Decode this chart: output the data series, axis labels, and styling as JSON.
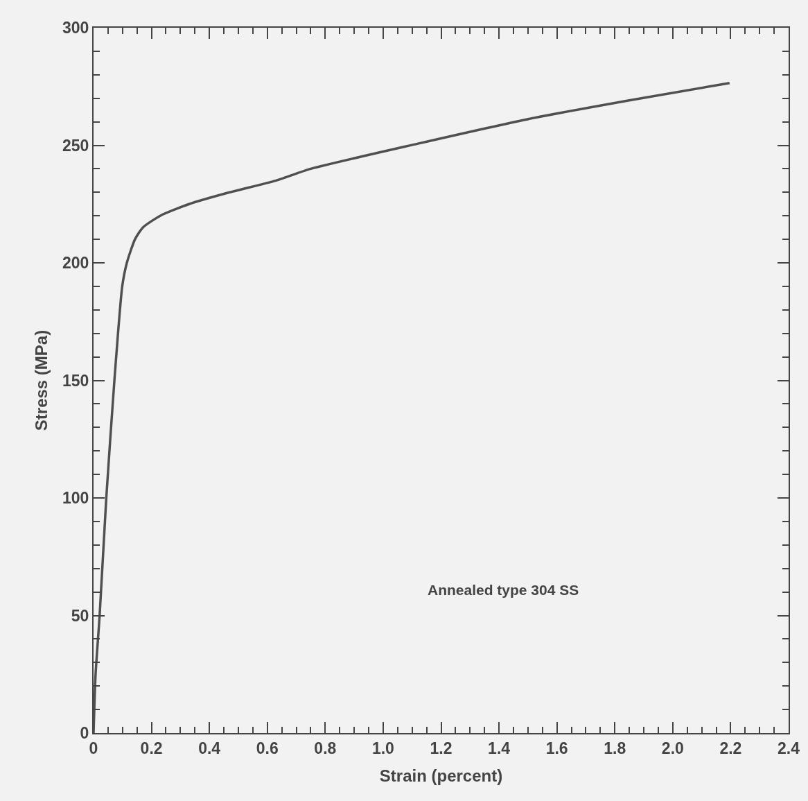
{
  "chart_data": {
    "type": "line",
    "xlabel": "Strain (percent)",
    "ylabel": "Stress (MPa)",
    "annotations": [
      "Annealed type 304 SS"
    ],
    "series": [
      {
        "color": "#505050",
        "x": [
          0,
          0.007,
          0.021,
          0.044,
          0.072,
          0.099,
          0.115,
          0.143,
          0.17,
          0.23,
          0.33,
          0.47,
          0.63,
          0.75,
          1.12,
          1.495,
          1.846,
          2.196
        ],
        "values": [
          0,
          25,
          50,
          100,
          150,
          190,
          200,
          210,
          215,
          220,
          225,
          230,
          235,
          240,
          250.7,
          261,
          269,
          276.5
        ]
      }
    ],
    "xlim": [
      0,
      2.4
    ],
    "ylim": [
      0,
      300
    ],
    "xticks": [
      0,
      0.2,
      0.4,
      0.6,
      0.8,
      {
        "value": 1.0,
        "label": "1.0"
      },
      1.2,
      1.4,
      1.6,
      1.8,
      {
        "value": 2.0,
        "label": "2.0"
      },
      2.2,
      2.4,
      {
        "value": 0.05,
        "label": null
      },
      {
        "value": 0.1,
        "label": null
      },
      {
        "value": 0.15,
        "label": null
      },
      {
        "value": 0.25,
        "label": null
      },
      {
        "value": 0.3,
        "label": null
      },
      {
        "value": 0.35,
        "label": null
      },
      {
        "value": 0.45,
        "label": null
      },
      {
        "value": 0.5,
        "label": null
      },
      {
        "value": 0.55,
        "label": null
      },
      {
        "value": 0.65,
        "label": null
      },
      {
        "value": 0.7,
        "label": null
      },
      {
        "value": 0.75,
        "label": null
      },
      {
        "value": 0.85,
        "label": null
      },
      {
        "value": 0.9,
        "label": null
      },
      {
        "value": 0.95,
        "label": null
      },
      {
        "value": 1.05,
        "label": null
      },
      {
        "value": 1.1,
        "label": null
      },
      {
        "value": 1.15,
        "label": null
      },
      {
        "value": 1.25,
        "label": null
      },
      {
        "value": 1.3,
        "label": null
      },
      {
        "value": 1.35,
        "label": null
      },
      {
        "value": 1.45,
        "label": null
      },
      {
        "value": 1.5,
        "label": null
      },
      {
        "value": 1.55,
        "label": null
      },
      {
        "value": 1.65,
        "label": null
      },
      {
        "value": 1.7,
        "label": null
      },
      {
        "value": 1.75,
        "label": null
      },
      {
        "value": 1.85,
        "label": null
      },
      {
        "value": 1.9,
        "label": null
      },
      {
        "value": 1.95,
        "label": null
      },
      {
        "value": 2.05,
        "label": null
      },
      {
        "value": 2.1,
        "label": null
      },
      {
        "value": 2.15,
        "label": null
      },
      {
        "value": 2.25,
        "label": null
      },
      {
        "value": 2.3,
        "label": null
      },
      {
        "value": 2.35,
        "label": null
      }
    ],
    "yticks": [
      0,
      50,
      100,
      150,
      200,
      250,
      300,
      {
        "value": 10,
        "label": null
      },
      {
        "value": 20,
        "label": null
      },
      {
        "value": 30,
        "label": null
      },
      {
        "value": 40,
        "label": null
      },
      {
        "value": 60,
        "label": null
      },
      {
        "value": 70,
        "label": null
      },
      {
        "value": 80,
        "label": null
      },
      {
        "value": 90,
        "label": null
      },
      {
        "value": 110,
        "label": null
      },
      {
        "value": 120,
        "label": null
      },
      {
        "value": 130,
        "label": null
      },
      {
        "value": 140,
        "label": null
      },
      {
        "value": 160,
        "label": null
      },
      {
        "value": 170,
        "label": null
      },
      {
        "value": 180,
        "label": null
      },
      {
        "value": 190,
        "label": null
      },
      {
        "value": 210,
        "label": null
      },
      {
        "value": 220,
        "label": null
      },
      {
        "value": 230,
        "label": null
      },
      {
        "value": 240,
        "label": null
      },
      {
        "value": 260,
        "label": null
      },
      {
        "value": 270,
        "label": null
      },
      {
        "value": 280,
        "label": null
      },
      {
        "value": 290,
        "label": null
      }
    ],
    "grid": false,
    "marker": "none",
    "line_style": "solid"
  }
}
